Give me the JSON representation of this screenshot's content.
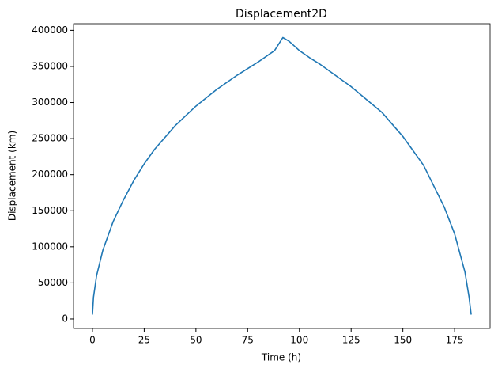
{
  "chart_data": {
    "type": "line",
    "title": "Displacement2D",
    "x_label": "Time (h)",
    "y_label": "Displacement (km)",
    "x": [
      0,
      0.5,
      2,
      5,
      10,
      15,
      20,
      25,
      30,
      40,
      50,
      60,
      70,
      80,
      88,
      92,
      95,
      100,
      105,
      110,
      125,
      140,
      150,
      160,
      170,
      175,
      180,
      182,
      183
    ],
    "series": [
      {
        "name": "Displacement",
        "color": "#1f77b4",
        "values": [
          6000,
          30000,
          60000,
          95000,
          135000,
          165000,
          192000,
          215000,
          235000,
          268000,
          295000,
          318000,
          338000,
          356000,
          372000,
          390000,
          385000,
          372000,
          362000,
          353000,
          322000,
          286000,
          253000,
          213000,
          155000,
          118000,
          65000,
          30000,
          6000
        ]
      }
    ],
    "xlim": [
      -9.15,
      192.15
    ],
    "ylim": [
      -13200,
      409200
    ],
    "xticks": [
      0,
      25,
      50,
      75,
      100,
      125,
      150,
      175
    ],
    "yticks": [
      0,
      50000,
      100000,
      150000,
      200000,
      250000,
      300000,
      350000,
      400000
    ]
  }
}
